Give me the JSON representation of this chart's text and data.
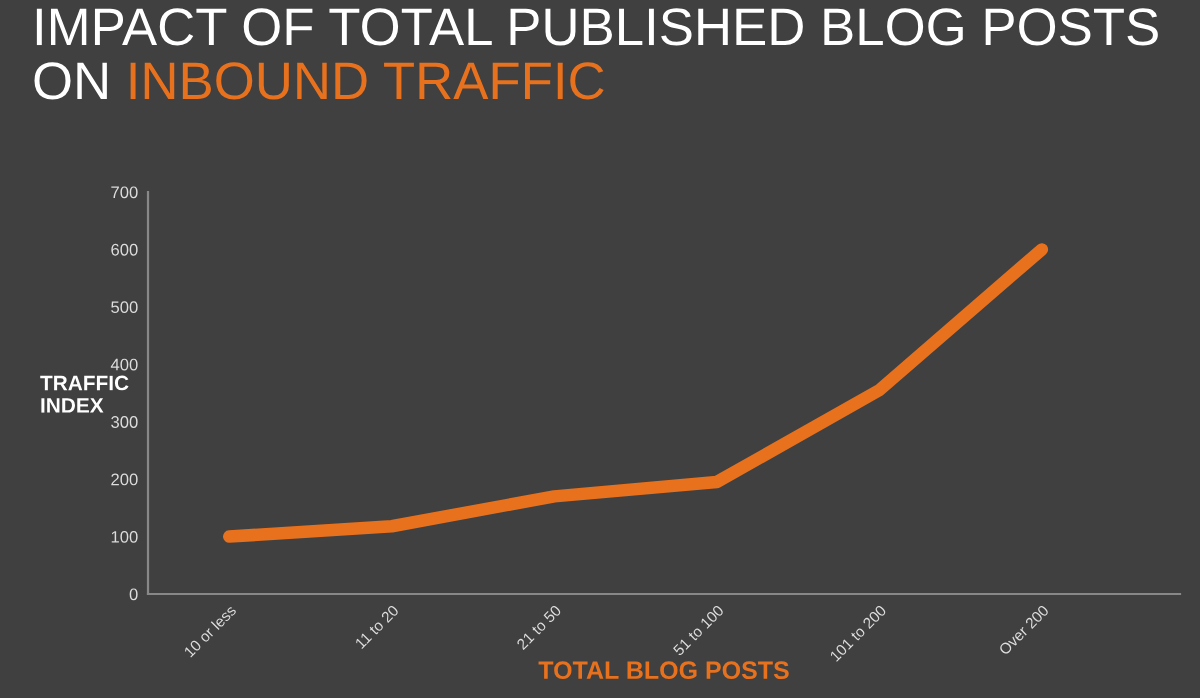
{
  "chart_data": {
    "type": "line",
    "title": "IMPACT OF TOTAL PUBLISHED BLOG POSTS",
    "subtitle": "ON INBOUND TRAFFIC",
    "xlabel": "TOTAL BLOG POSTS",
    "ylabel": "TRAFFIC\nINDEX",
    "categories": [
      "10 or less",
      "11 to 20",
      "21 to 50",
      "51 to 100",
      "101 to 200",
      "Over 200"
    ],
    "series": [
      {
        "color": "#e8711e",
        "values": [
          100,
          118,
          170,
          195,
          355,
          600
        ]
      }
    ],
    "ylim": [
      0,
      700
    ],
    "yticks": [
      0,
      100,
      200,
      300,
      400,
      500,
      600,
      700
    ],
    "grid": false,
    "legend": false,
    "marker": "none",
    "line_style": "solid"
  }
}
